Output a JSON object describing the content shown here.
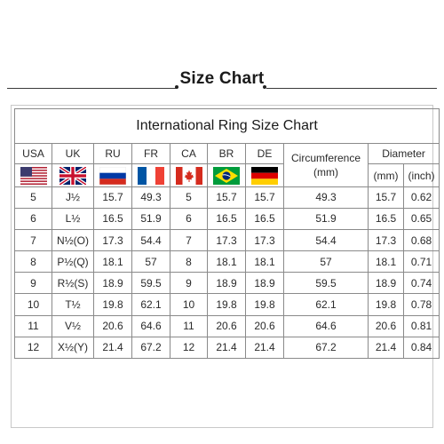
{
  "page_title": "Size Chart",
  "table_title": "International Ring Size Chart",
  "columns": [
    "USA",
    "UK",
    "RU",
    "FR",
    "CA",
    "BR",
    "DE"
  ],
  "circumference_header": [
    "Circumference",
    "(mm)"
  ],
  "diameter_header": "Diameter",
  "diameter_units": [
    "(mm)",
    "(inch)"
  ],
  "flags": [
    "usa-flag-icon",
    "uk-flag-icon",
    "russia-flag-icon",
    "france-flag-icon",
    "canada-flag-icon",
    "brazil-flag-icon",
    "germany-flag-icon"
  ],
  "rows": [
    [
      "5",
      "J½",
      "15.7",
      "49.3",
      "5",
      "15.7",
      "15.7",
      "49.3",
      "15.7",
      "0.62"
    ],
    [
      "6",
      "L½",
      "16.5",
      "51.9",
      "6",
      "16.5",
      "16.5",
      "51.9",
      "16.5",
      "0.65"
    ],
    [
      "7",
      "N½(O)",
      "17.3",
      "54.4",
      "7",
      "17.3",
      "17.3",
      "54.4",
      "17.3",
      "0.68"
    ],
    [
      "8",
      "P½(Q)",
      "18.1",
      "57",
      "8",
      "18.1",
      "18.1",
      "57",
      "18.1",
      "0.71"
    ],
    [
      "9",
      "R½(S)",
      "18.9",
      "59.5",
      "9",
      "18.9",
      "18.9",
      "59.5",
      "18.9",
      "0.74"
    ],
    [
      "10",
      "T½",
      "19.8",
      "62.1",
      "10",
      "19.8",
      "19.8",
      "62.1",
      "19.8",
      "0.78"
    ],
    [
      "11",
      "V½",
      "20.6",
      "64.6",
      "11",
      "20.6",
      "20.6",
      "64.6",
      "20.6",
      "0.81"
    ],
    [
      "12",
      "X½(Y)",
      "21.4",
      "67.2",
      "12",
      "21.4",
      "21.4",
      "67.2",
      "21.4",
      "0.84"
    ]
  ]
}
